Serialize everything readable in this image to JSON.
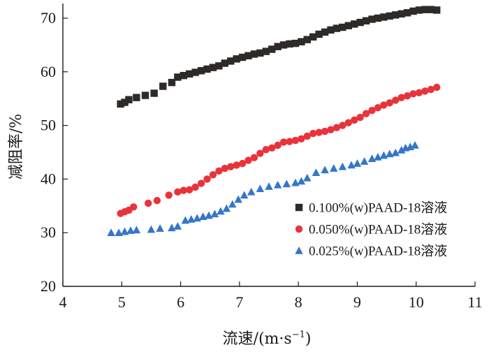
{
  "chart_data": {
    "type": "scatter",
    "xlabel": "流速/(m·s",
    "xlabel_sup": "−1",
    "xlabel_close": ")",
    "ylabel": "减阻率/%",
    "xlim": [
      4,
      11
    ],
    "ylim": [
      20,
      72
    ],
    "x_ticks": [
      "4",
      "5",
      "6",
      "7",
      "8",
      "9",
      "10",
      "11"
    ],
    "y_ticks": [
      "20",
      "30",
      "40",
      "50",
      "60",
      "70"
    ],
    "grid": false,
    "legend_position": "right-center",
    "series": [
      {
        "name": "0.100%(w)PAAD-18溶液",
        "marker": "square",
        "color": "#2d2a28",
        "points": [
          [
            4.98,
            54.0
          ],
          [
            5.05,
            54.3
          ],
          [
            5.12,
            54.8
          ],
          [
            5.25,
            55.2
          ],
          [
            5.4,
            55.6
          ],
          [
            5.55,
            56.0
          ],
          [
            5.7,
            57.3
          ],
          [
            5.85,
            58.0
          ],
          [
            5.95,
            59.0
          ],
          [
            6.05,
            59.3
          ],
          [
            6.15,
            59.6
          ],
          [
            6.25,
            59.9
          ],
          [
            6.35,
            60.2
          ],
          [
            6.45,
            60.5
          ],
          [
            6.55,
            60.8
          ],
          [
            6.65,
            61.1
          ],
          [
            6.75,
            61.6
          ],
          [
            6.85,
            62.0
          ],
          [
            6.95,
            62.4
          ],
          [
            7.05,
            62.7
          ],
          [
            7.15,
            63.0
          ],
          [
            7.25,
            63.3
          ],
          [
            7.35,
            63.5
          ],
          [
            7.45,
            63.8
          ],
          [
            7.55,
            64.2
          ],
          [
            7.65,
            64.7
          ],
          [
            7.75,
            65.0
          ],
          [
            7.85,
            65.2
          ],
          [
            7.95,
            65.3
          ],
          [
            8.05,
            65.6
          ],
          [
            8.15,
            66.0
          ],
          [
            8.25,
            66.5
          ],
          [
            8.35,
            67.0
          ],
          [
            8.45,
            67.4
          ],
          [
            8.55,
            67.8
          ],
          [
            8.65,
            68.1
          ],
          [
            8.75,
            68.3
          ],
          [
            8.85,
            68.6
          ],
          [
            8.95,
            68.9
          ],
          [
            9.05,
            69.2
          ],
          [
            9.15,
            69.5
          ],
          [
            9.25,
            69.8
          ],
          [
            9.35,
            70.0
          ],
          [
            9.45,
            70.2
          ],
          [
            9.55,
            70.4
          ],
          [
            9.65,
            70.6
          ],
          [
            9.75,
            70.8
          ],
          [
            9.85,
            71.0
          ],
          [
            9.95,
            71.3
          ],
          [
            10.05,
            71.5
          ],
          [
            10.15,
            71.6
          ],
          [
            10.25,
            71.6
          ],
          [
            10.35,
            71.5
          ]
        ]
      },
      {
        "name": "0.050%(w)PAAD-18溶液",
        "marker": "circle",
        "color": "#e8333b",
        "points": [
          [
            4.98,
            33.6
          ],
          [
            5.05,
            33.9
          ],
          [
            5.12,
            34.2
          ],
          [
            5.2,
            34.8
          ],
          [
            5.45,
            35.5
          ],
          [
            5.6,
            36.0
          ],
          [
            5.8,
            37.0
          ],
          [
            5.95,
            37.6
          ],
          [
            6.05,
            37.9
          ],
          [
            6.15,
            38.0
          ],
          [
            6.25,
            38.5
          ],
          [
            6.35,
            39.2
          ],
          [
            6.45,
            40.0
          ],
          [
            6.55,
            40.8
          ],
          [
            6.65,
            41.5
          ],
          [
            6.75,
            42.0
          ],
          [
            6.85,
            42.3
          ],
          [
            6.95,
            42.6
          ],
          [
            7.05,
            42.9
          ],
          [
            7.15,
            43.5
          ],
          [
            7.25,
            44.0
          ],
          [
            7.35,
            44.8
          ],
          [
            7.45,
            45.5
          ],
          [
            7.55,
            45.8
          ],
          [
            7.65,
            46.3
          ],
          [
            7.75,
            46.9
          ],
          [
            7.85,
            47.0
          ],
          [
            7.95,
            47.2
          ],
          [
            8.05,
            47.5
          ],
          [
            8.15,
            48.0
          ],
          [
            8.25,
            48.5
          ],
          [
            8.35,
            48.7
          ],
          [
            8.45,
            48.9
          ],
          [
            8.55,
            49.2
          ],
          [
            8.65,
            49.6
          ],
          [
            8.75,
            50.0
          ],
          [
            8.85,
            50.5
          ],
          [
            8.95,
            51.0
          ],
          [
            9.05,
            51.5
          ],
          [
            9.15,
            52.2
          ],
          [
            9.25,
            52.8
          ],
          [
            9.35,
            53.3
          ],
          [
            9.45,
            53.8
          ],
          [
            9.55,
            54.2
          ],
          [
            9.65,
            54.7
          ],
          [
            9.75,
            55.2
          ],
          [
            9.85,
            55.5
          ],
          [
            9.95,
            55.9
          ],
          [
            10.05,
            56.1
          ],
          [
            10.15,
            56.4
          ],
          [
            10.25,
            56.7
          ],
          [
            10.35,
            57.1
          ]
        ]
      },
      {
        "name": "0.025%(w)PAAD-18溶液",
        "marker": "triangle",
        "color": "#3476c8",
        "points": [
          [
            4.82,
            30.0
          ],
          [
            4.95,
            30.0
          ],
          [
            5.05,
            30.2
          ],
          [
            5.15,
            30.4
          ],
          [
            5.25,
            30.5
          ],
          [
            5.5,
            30.6
          ],
          [
            5.65,
            30.8
          ],
          [
            5.85,
            30.9
          ],
          [
            5.95,
            31.2
          ],
          [
            6.08,
            32.3
          ],
          [
            6.18,
            32.5
          ],
          [
            6.28,
            32.7
          ],
          [
            6.38,
            33.0
          ],
          [
            6.48,
            33.2
          ],
          [
            6.58,
            33.5
          ],
          [
            6.68,
            34.0
          ],
          [
            6.78,
            34.5
          ],
          [
            6.88,
            35.3
          ],
          [
            6.98,
            36.2
          ],
          [
            7.08,
            37.0
          ],
          [
            7.2,
            37.6
          ],
          [
            7.35,
            38.2
          ],
          [
            7.5,
            38.6
          ],
          [
            7.65,
            38.9
          ],
          [
            7.8,
            39.1
          ],
          [
            7.95,
            39.3
          ],
          [
            8.05,
            39.6
          ],
          [
            8.15,
            40.2
          ],
          [
            8.3,
            41.2
          ],
          [
            8.45,
            41.7
          ],
          [
            8.6,
            42.0
          ],
          [
            8.75,
            42.3
          ],
          [
            8.9,
            42.6
          ],
          [
            9.0,
            42.9
          ],
          [
            9.12,
            43.3
          ],
          [
            9.25,
            43.8
          ],
          [
            9.35,
            44.1
          ],
          [
            9.45,
            44.4
          ],
          [
            9.55,
            44.7
          ],
          [
            9.65,
            44.9
          ],
          [
            9.75,
            45.4
          ],
          [
            9.82,
            45.8
          ],
          [
            9.9,
            46.0
          ],
          [
            9.98,
            46.3
          ]
        ]
      }
    ]
  }
}
